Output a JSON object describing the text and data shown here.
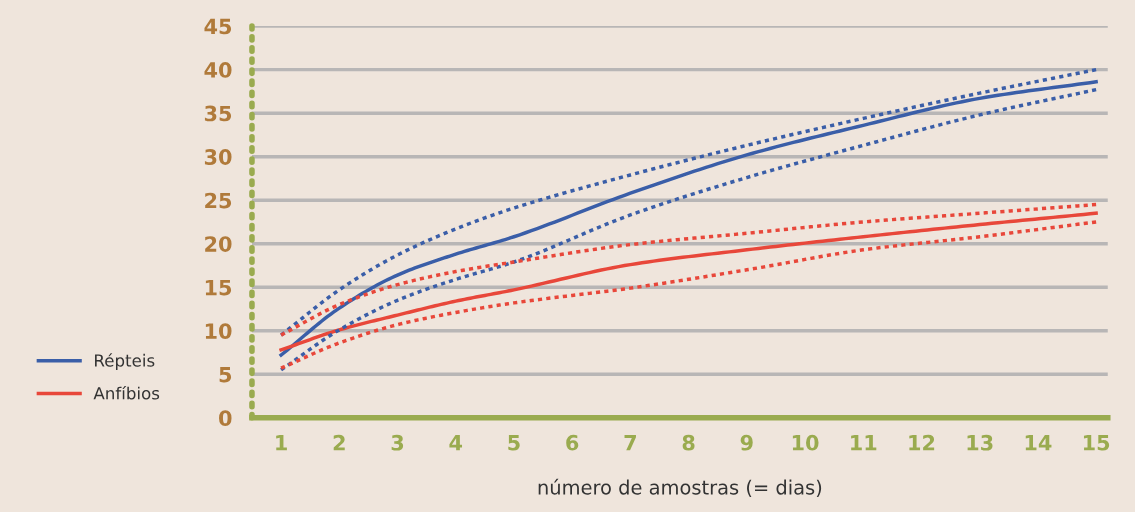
{
  "chart_data": {
    "type": "line",
    "xlabel": "número de amostras (= dias)",
    "x": [
      1,
      2,
      3,
      4,
      5,
      7,
      9,
      11,
      13,
      15
    ],
    "series": [
      {
        "name": "Répteis",
        "color": "#3a5ea8",
        "values": [
          7.2,
          12.6,
          16.4,
          18.8,
          20.8,
          25.8,
          30.2,
          33.6,
          36.7,
          38.6
        ]
      },
      {
        "name": "Anfíbios",
        "color": "#e8473a",
        "values": [
          7.8,
          10.1,
          11.8,
          13.4,
          14.7,
          17.6,
          19.3,
          20.8,
          22.2,
          23.5
        ]
      },
      {
        "color": "#3a5ea8",
        "line_style": "dotted",
        "values": [
          9.5,
          14.7,
          18.7,
          21.7,
          24.1,
          27.9,
          31.3,
          34.4,
          37.3,
          40
        ]
      },
      {
        "color": "#3a5ea8",
        "line_style": "dotted",
        "values": [
          5.5,
          10.1,
          13.5,
          15.9,
          17.9,
          23.3,
          27.6,
          31.3,
          34.8,
          37.7
        ]
      },
      {
        "color": "#e8473a",
        "line_style": "dotted",
        "values": [
          9.5,
          13,
          15.3,
          16.8,
          17.9,
          19.9,
          21.2,
          22.5,
          23.5,
          24.5
        ]
      },
      {
        "color": "#e8473a",
        "line_style": "dotted",
        "values": [
          5.7,
          8.6,
          10.7,
          12.1,
          13.2,
          14.9,
          17,
          19.3,
          20.8,
          22.5
        ]
      }
    ],
    "xlim": [
      0.5,
      15.2
    ],
    "xticks": [
      1,
      2,
      3,
      4,
      5,
      6,
      7,
      8,
      9,
      10,
      11,
      12,
      13,
      14,
      15
    ],
    "ylim": [
      0,
      45
    ],
    "yticks": [
      0,
      5,
      10,
      15,
      20,
      25,
      30,
      35,
      40,
      45
    ],
    "grid": "y",
    "legend": "bottom left",
    "line_style": "solid",
    "marker": "none"
  }
}
